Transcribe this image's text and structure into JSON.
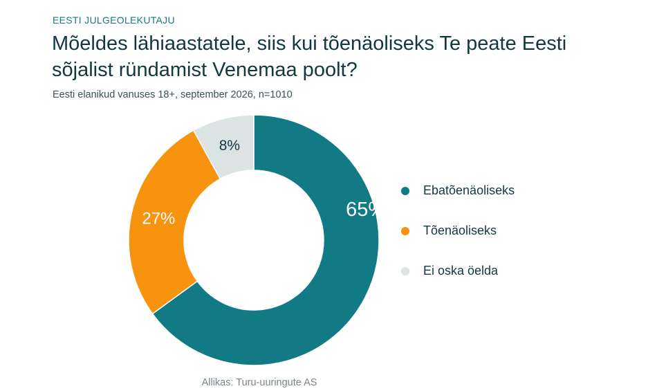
{
  "header": {
    "kicker": "EESTI JULGEOLEKUTAJU",
    "title": "Mõeldes lähiaastatele, siis kui tõenäoliseks Te peate Eesti sõjalist ründamist Venemaa poolt?",
    "subtitle": "Eesti elanikud vanuses 18+, september 2026, n=1010"
  },
  "footer": {
    "source": "Allikas: Turu-uuringute AS"
  },
  "chart_data": {
    "type": "pie",
    "style": "donut",
    "categories": [
      "Ebatõenäoliseks",
      "Tõenäoliseks",
      "Ei oska öelda"
    ],
    "values": [
      65,
      27,
      8
    ],
    "labels": [
      "65%",
      "27%",
      "8%"
    ],
    "colors": [
      "#117a85",
      "#f7930f",
      "#dce3e3"
    ],
    "label_colors": [
      "#ffffff",
      "#ffffff",
      "#12383f"
    ],
    "start": "top",
    "direction": "clockwise",
    "legend_position": "right"
  }
}
